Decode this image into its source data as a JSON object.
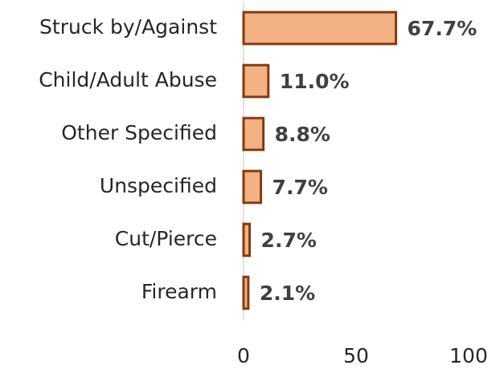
{
  "chart_data": {
    "type": "barh",
    "categories": [
      "Struck by/Against",
      "Child/Adult Abuse",
      "Other Specified",
      "Unspecified",
      "Cut/Pierce",
      "Firearm"
    ],
    "values": [
      67.7,
      11.0,
      8.8,
      7.7,
      2.7,
      2.1
    ],
    "value_labels": [
      "67.7%",
      "11.0%",
      "8.8%",
      "7.7%",
      "2.7%",
      "2.1%"
    ],
    "color": "#f4b183",
    "edge_color": "#843c0c",
    "xlim": [
      0,
      100
    ],
    "xticks": [
      0,
      50,
      100
    ],
    "grid": false
  }
}
